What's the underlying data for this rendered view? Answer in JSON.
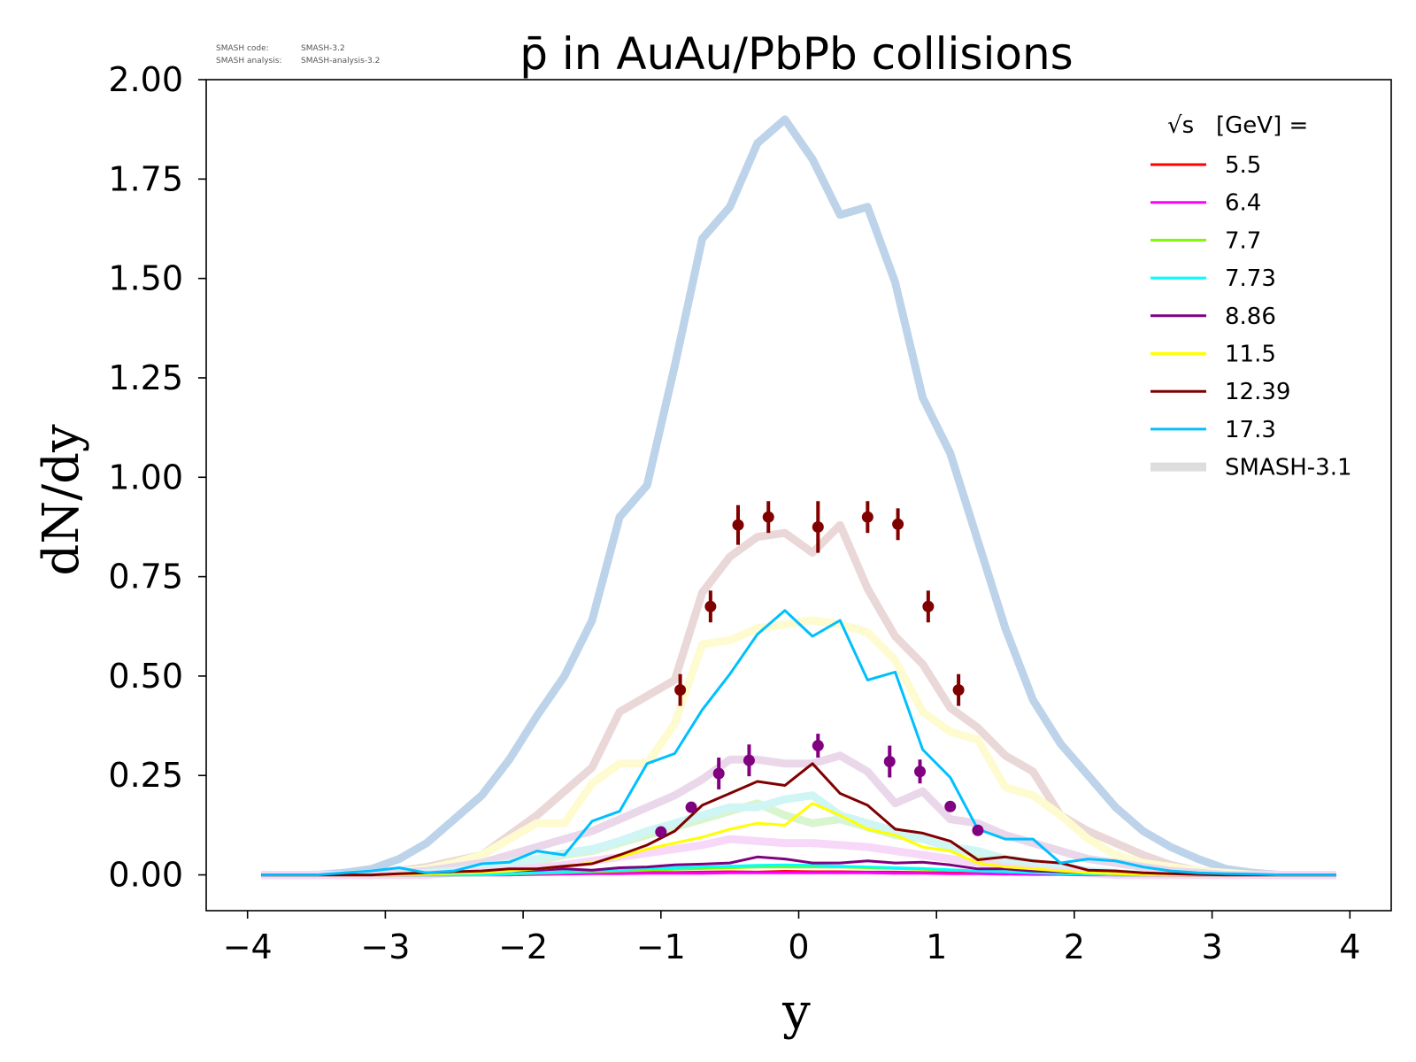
{
  "credits": {
    "code_label": "SMASH code:",
    "code_value": "SMASH-3.2",
    "analysis_label": "SMASH analysis:",
    "analysis_value": "SMASH-analysis-3.2"
  },
  "chart_data": {
    "type": "line",
    "title": "p̄ in AuAu/PbPb collisions",
    "xlabel": "y",
    "ylabel": "dN/dy",
    "xlim": [
      -4.3,
      4.3
    ],
    "ylim": [
      -0.09,
      2.0
    ],
    "xticks": [
      -4,
      -3,
      -2,
      -1,
      0,
      1,
      2,
      3,
      4
    ],
    "xtick_labels": [
      "−4",
      "−3",
      "−2",
      "−1",
      "0",
      "1",
      "2",
      "3",
      "4"
    ],
    "yticks": [
      0,
      0.25,
      0.5,
      0.75,
      1.0,
      1.25,
      1.5,
      1.75,
      2.0
    ],
    "ytick_labels": [
      "0.00",
      "0.25",
      "0.50",
      "0.75",
      "1.00",
      "1.25",
      "1.50",
      "1.75",
      "2.00"
    ],
    "grid": false,
    "legend": {
      "placement": "top-right",
      "title_prefix": "√s",
      "title_suffix": "[GeV] =",
      "entries": [
        {
          "label": "5.5",
          "color": "#ff0000"
        },
        {
          "label": "6.4",
          "color": "#ff00ff"
        },
        {
          "label": "7.7",
          "color": "#7cfc00"
        },
        {
          "label": "7.73",
          "color": "#00ffff"
        },
        {
          "label": "8.86",
          "color": "#800080"
        },
        {
          "label": "11.5",
          "color": "#ffff00"
        },
        {
          "label": "12.39",
          "color": "#800000"
        },
        {
          "label": "17.3",
          "color": "#00bfff"
        },
        {
          "label": "SMASH-3.1",
          "color": "#dddddd",
          "reference": true
        }
      ]
    },
    "x": [
      -3.9,
      -3.7,
      -3.5,
      -3.3,
      -3.1,
      -2.9,
      -2.7,
      -2.5,
      -2.3,
      -2.1,
      -1.9,
      -1.7,
      -1.5,
      -1.3,
      -1.1,
      -0.9,
      -0.7,
      -0.5,
      -0.3,
      -0.1,
      0.1,
      0.3,
      0.5,
      0.7,
      0.9,
      1.1,
      1.3,
      1.5,
      1.7,
      1.9,
      2.1,
      2.3,
      2.5,
      2.7,
      2.9,
      3.1,
      3.3,
      3.5,
      3.7,
      3.9
    ],
    "series": [
      {
        "name": "5.5",
        "color": "#ff0000",
        "values": [
          0,
          0,
          0,
          0,
          0,
          0,
          0,
          0,
          0,
          0,
          0.002,
          0.003,
          0.004,
          0.005,
          0.006,
          0.006,
          0.007,
          0.008,
          0.007,
          0.009,
          0.008,
          0.008,
          0.007,
          0.007,
          0.006,
          0.005,
          0.004,
          0.003,
          0.002,
          0.002,
          0.001,
          0,
          0,
          0,
          0,
          0,
          0,
          0,
          0,
          0
        ]
      },
      {
        "name": "6.4",
        "color": "#ff00ff",
        "values": [
          0,
          0,
          0,
          0,
          0,
          0,
          0,
          0,
          0,
          0,
          0.001,
          0.002,
          0.003,
          0.003,
          0.004,
          0.004,
          0.004,
          0.005,
          0.005,
          0.005,
          0.005,
          0.005,
          0.005,
          0.004,
          0.004,
          0.003,
          0.003,
          0.002,
          0.001,
          0.001,
          0,
          0,
          0,
          0,
          0,
          0,
          0,
          0,
          0,
          0
        ]
      },
      {
        "name": "7.7",
        "color": "#7cfc00",
        "values": [
          0,
          0,
          0,
          0,
          0,
          0,
          0,
          0,
          0,
          0.002,
          0.004,
          0.006,
          0.008,
          0.01,
          0.012,
          0.014,
          0.016,
          0.018,
          0.02,
          0.02,
          0.02,
          0.02,
          0.018,
          0.016,
          0.014,
          0.012,
          0.01,
          0.008,
          0.006,
          0.004,
          0.002,
          0,
          0,
          0,
          0,
          0,
          0,
          0,
          0,
          0
        ]
      },
      {
        "name": "7.73",
        "color": "#00ffff",
        "values": [
          0,
          0,
          0,
          0,
          0,
          0,
          0,
          0,
          0,
          0.003,
          0.005,
          0.008,
          0.01,
          0.013,
          0.016,
          0.018,
          0.02,
          0.022,
          0.024,
          0.025,
          0.024,
          0.022,
          0.02,
          0.018,
          0.016,
          0.013,
          0.01,
          0.008,
          0.005,
          0.003,
          0.002,
          0,
          0,
          0,
          0,
          0,
          0,
          0,
          0,
          0
        ]
      },
      {
        "name": "8.86",
        "color": "#800080",
        "values": [
          0,
          0,
          0,
          0,
          0,
          0.002,
          0.003,
          0.005,
          0.008,
          0.01,
          0.012,
          0.015,
          0.012,
          0.018,
          0.02,
          0.025,
          0.027,
          0.03,
          0.045,
          0.04,
          0.03,
          0.03,
          0.035,
          0.03,
          0.032,
          0.025,
          0.015,
          0.015,
          0.01,
          0.008,
          0.005,
          0.003,
          0.002,
          0,
          0,
          0,
          0,
          0,
          0,
          0
        ]
      },
      {
        "name": "11.5",
        "color": "#ffff00",
        "values": [
          0,
          0,
          0,
          0,
          0,
          0,
          0.002,
          0.004,
          0.006,
          0.01,
          0.015,
          0.022,
          0.03,
          0.045,
          0.065,
          0.08,
          0.095,
          0.115,
          0.13,
          0.125,
          0.18,
          0.15,
          0.115,
          0.1,
          0.07,
          0.06,
          0.03,
          0.02,
          0.015,
          0.01,
          0.005,
          0.003,
          0.001,
          0,
          0,
          0,
          0,
          0,
          0,
          0
        ]
      },
      {
        "name": "12.39",
        "color": "#800000",
        "values": [
          0,
          0,
          0,
          0,
          0,
          0.003,
          0.005,
          0.008,
          0.01,
          0.015,
          0.015,
          0.022,
          0.028,
          0.05,
          0.075,
          0.11,
          0.175,
          0.205,
          0.235,
          0.225,
          0.28,
          0.205,
          0.175,
          0.115,
          0.105,
          0.085,
          0.038,
          0.045,
          0.035,
          0.03,
          0.012,
          0.01,
          0.005,
          0.003,
          0.001,
          0,
          0,
          0,
          0,
          0
        ]
      },
      {
        "name": "17.3",
        "color": "#00bfff",
        "values": [
          0,
          0,
          0,
          0.005,
          0.01,
          0.018,
          0.005,
          0.01,
          0.028,
          0.032,
          0.06,
          0.05,
          0.135,
          0.16,
          0.28,
          0.305,
          0.415,
          0.505,
          0.605,
          0.665,
          0.6,
          0.64,
          0.49,
          0.51,
          0.315,
          0.245,
          0.115,
          0.09,
          0.09,
          0.03,
          0.04,
          0.035,
          0.02,
          0.01,
          0.005,
          0.003,
          0.002,
          0,
          0,
          0
        ]
      }
    ],
    "reference_series": [
      {
        "name": "SMASH-3.1 17.3",
        "color": "#bcd3ea",
        "values": [
          0,
          0,
          0,
          0.005,
          0.015,
          0.04,
          0.08,
          0.14,
          0.2,
          0.29,
          0.4,
          0.5,
          0.64,
          0.9,
          0.98,
          1.28,
          1.6,
          1.68,
          1.84,
          1.9,
          1.8,
          1.66,
          1.68,
          1.49,
          1.2,
          1.06,
          0.84,
          0.62,
          0.44,
          0.33,
          0.25,
          0.17,
          0.11,
          0.07,
          0.04,
          0.015,
          0.005,
          0,
          0,
          0
        ]
      },
      {
        "name": "SMASH-3.1 12.39",
        "color": "#ead8d8",
        "values": [
          0,
          0,
          0,
          0,
          0.003,
          0.01,
          0.02,
          0.035,
          0.05,
          0.1,
          0.15,
          0.21,
          0.27,
          0.41,
          0.45,
          0.49,
          0.71,
          0.8,
          0.85,
          0.86,
          0.81,
          0.88,
          0.72,
          0.6,
          0.53,
          0.42,
          0.37,
          0.3,
          0.26,
          0.15,
          0.11,
          0.08,
          0.05,
          0.025,
          0.01,
          0.005,
          0.002,
          0,
          0,
          0
        ]
      },
      {
        "name": "SMASH-3.1 11.5",
        "color": "#fefbd0",
        "values": [
          0,
          0,
          0,
          0,
          0.003,
          0.008,
          0.015,
          0.03,
          0.05,
          0.09,
          0.13,
          0.13,
          0.23,
          0.28,
          0.28,
          0.38,
          0.58,
          0.59,
          0.62,
          0.63,
          0.64,
          0.63,
          0.61,
          0.54,
          0.41,
          0.36,
          0.34,
          0.22,
          0.2,
          0.15,
          0.09,
          0.05,
          0.03,
          0.02,
          0.01,
          0.005,
          0,
          0,
          0,
          0
        ]
      },
      {
        "name": "SMASH-3.1 8.86",
        "color": "#ead8ea",
        "values": [
          0,
          0,
          0,
          0,
          0,
          0.005,
          0.01,
          0.02,
          0.03,
          0.05,
          0.07,
          0.09,
          0.11,
          0.14,
          0.17,
          0.2,
          0.24,
          0.29,
          0.29,
          0.28,
          0.28,
          0.3,
          0.26,
          0.18,
          0.21,
          0.14,
          0.13,
          0.1,
          0.08,
          0.06,
          0.04,
          0.03,
          0.02,
          0.01,
          0.005,
          0,
          0,
          0,
          0,
          0
        ]
      },
      {
        "name": "SMASH-3.1 7.7",
        "color": "#d9f5d0",
        "values": [
          0,
          0,
          0,
          0,
          0,
          0,
          0.005,
          0.01,
          0.015,
          0.025,
          0.035,
          0.05,
          0.06,
          0.08,
          0.1,
          0.12,
          0.14,
          0.16,
          0.18,
          0.15,
          0.13,
          0.14,
          0.12,
          0.1,
          0.09,
          0.07,
          0.05,
          0.04,
          0.03,
          0.02,
          0.01,
          0.005,
          0,
          0,
          0,
          0,
          0,
          0,
          0,
          0
        ]
      },
      {
        "name": "SMASH-3.1 7.73",
        "color": "#d0f5f5",
        "values": [
          0,
          0,
          0,
          0,
          0,
          0,
          0.005,
          0.01,
          0.02,
          0.03,
          0.04,
          0.055,
          0.065,
          0.085,
          0.11,
          0.13,
          0.15,
          0.17,
          0.17,
          0.19,
          0.2,
          0.15,
          0.13,
          0.11,
          0.09,
          0.07,
          0.06,
          0.04,
          0.03,
          0.02,
          0.01,
          0.005,
          0,
          0,
          0,
          0,
          0,
          0,
          0,
          0
        ]
      },
      {
        "name": "SMASH-3.1 6.4",
        "color": "#f8d8f8",
        "values": [
          0,
          0,
          0,
          0,
          0,
          0,
          0,
          0.005,
          0.008,
          0.012,
          0.018,
          0.025,
          0.035,
          0.045,
          0.055,
          0.065,
          0.075,
          0.09,
          0.085,
          0.08,
          0.08,
          0.075,
          0.07,
          0.06,
          0.05,
          0.04,
          0.03,
          0.02,
          0.012,
          0.008,
          0.005,
          0,
          0,
          0,
          0,
          0,
          0,
          0,
          0,
          0
        ]
      }
    ],
    "measurements": [
      {
        "series": "12.39",
        "color": "#800000",
        "points": [
          {
            "x": -0.86,
            "y": 0.465,
            "err": 0.04
          },
          {
            "x": -0.64,
            "y": 0.675,
            "err": 0.04
          },
          {
            "x": -0.44,
            "y": 0.88,
            "err": 0.05
          },
          {
            "x": -0.22,
            "y": 0.9,
            "err": 0.04
          },
          {
            "x": 0.14,
            "y": 0.875,
            "err": 0.065
          },
          {
            "x": 0.5,
            "y": 0.9,
            "err": 0.04
          },
          {
            "x": 0.72,
            "y": 0.882,
            "err": 0.04
          },
          {
            "x": 0.94,
            "y": 0.675,
            "err": 0.04
          },
          {
            "x": 1.16,
            "y": 0.465,
            "err": 0.04
          }
        ]
      },
      {
        "series": "8.86",
        "color": "#800080",
        "points": [
          {
            "x": -1.0,
            "y": 0.108,
            "err": 0.0
          },
          {
            "x": -0.78,
            "y": 0.17,
            "err": 0.012
          },
          {
            "x": -0.58,
            "y": 0.255,
            "err": 0.04
          },
          {
            "x": -0.36,
            "y": 0.288,
            "err": 0.04
          },
          {
            "x": 0.14,
            "y": 0.325,
            "err": 0.03
          },
          {
            "x": 0.66,
            "y": 0.285,
            "err": 0.04
          },
          {
            "x": 0.88,
            "y": 0.26,
            "err": 0.03
          },
          {
            "x": 1.1,
            "y": 0.172,
            "err": 0.0
          },
          {
            "x": 1.3,
            "y": 0.112,
            "err": 0.0
          }
        ]
      }
    ]
  }
}
